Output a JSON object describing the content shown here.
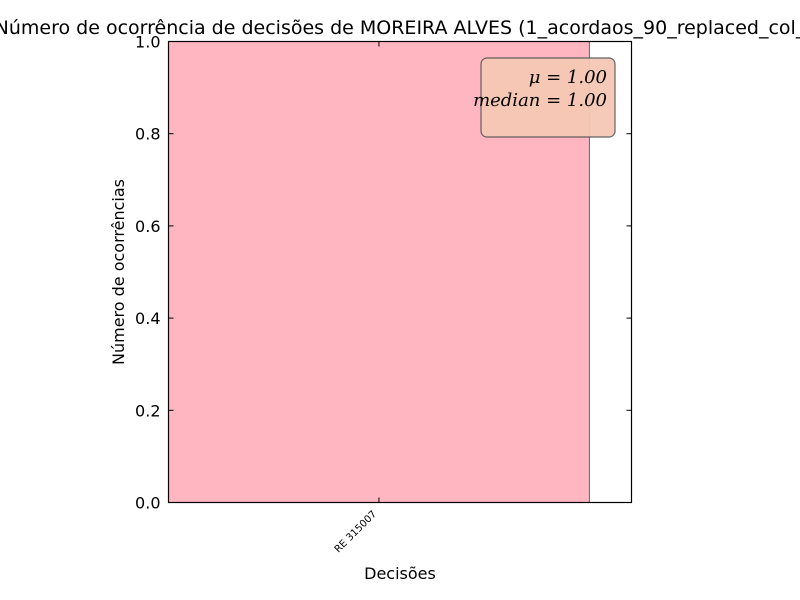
{
  "chart_data": {
    "type": "bar",
    "title": "Número de ocorrência de decisões de MOREIRA ALVES (1_acordaos_90_replaced_col_",
    "xlabel": "Decisões",
    "ylabel": "Número de ocorrências",
    "categories": [
      "RE 315007"
    ],
    "values": [
      1
    ],
    "ylim": [
      0,
      1.0
    ],
    "yticks": [
      "0.0",
      "0.2",
      "0.4",
      "0.6",
      "0.8",
      "1.0"
    ],
    "bar_color": "#ffb6c1",
    "grid": false,
    "stats_box": {
      "mean_label": "μ = 1.00",
      "median_label": "median = 1.00",
      "placement": "top-right",
      "background": "#f6c8b5"
    }
  }
}
